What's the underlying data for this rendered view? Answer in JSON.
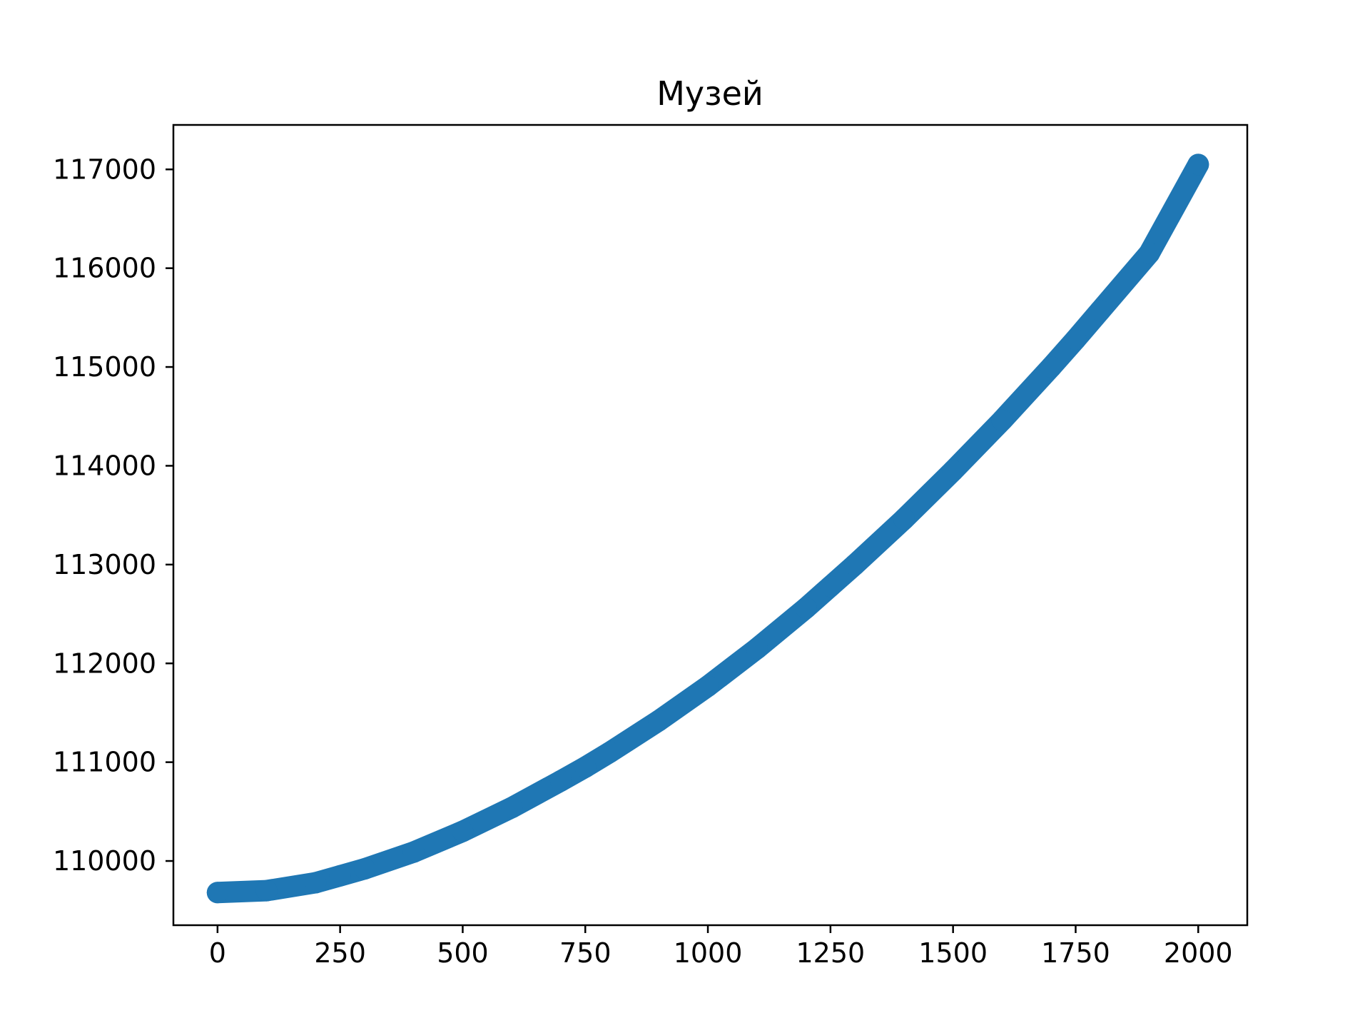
{
  "chart_data": {
    "type": "scatter",
    "title": "Музей",
    "xlabel": "",
    "ylabel": "",
    "xlim": [
      -90,
      2100
    ],
    "ylim": [
      109350,
      117450
    ],
    "x_ticks": [
      0,
      250,
      500,
      750,
      1000,
      1250,
      1500,
      1750,
      2000
    ],
    "x_tick_labels": [
      "0",
      "250",
      "500",
      "750",
      "1000",
      "1250",
      "1500",
      "1750",
      "2000"
    ],
    "y_ticks": [
      110000,
      111000,
      112000,
      113000,
      114000,
      115000,
      116000,
      117000
    ],
    "y_tick_labels": [
      "110000",
      "111000",
      "112000",
      "113000",
      "114000",
      "115000",
      "116000",
      "117000"
    ],
    "grid": false,
    "series": [
      {
        "color": "#1f77b4",
        "x": [
          0,
          100,
          200,
          250,
          300,
          400,
          500,
          600,
          700,
          750,
          800,
          900,
          1000,
          1100,
          1200,
          1250,
          1300,
          1400,
          1500,
          1600,
          1700,
          1750,
          1800,
          1900,
          2000
        ],
        "values": [
          109680,
          109700,
          109780,
          109850,
          109920,
          110090,
          110300,
          110540,
          110810,
          110950,
          111100,
          111420,
          111770,
          112150,
          112560,
          112780,
          113000,
          113460,
          113950,
          114460,
          115000,
          115280,
          115570,
          116150,
          117050
        ]
      }
    ]
  }
}
